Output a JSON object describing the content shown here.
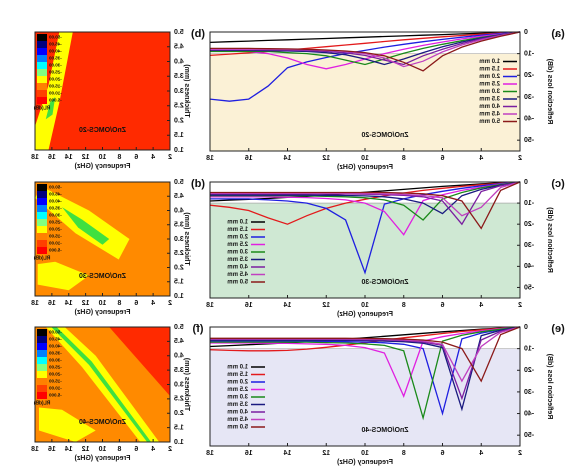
{
  "chart_data": [
    {
      "type": "line",
      "panel": "(a)",
      "annotation": "ZnO/OMCS-20",
      "x_label": "Frequency (GHz)",
      "y_label": "Reflection loss (dB)",
      "x": [
        2,
        3,
        4,
        5,
        6,
        7,
        8,
        9,
        10,
        11,
        12,
        13,
        14,
        15,
        16,
        17,
        18
      ],
      "xlim": [
        2,
        18
      ],
      "xticks": [
        2,
        4,
        6,
        8,
        10,
        12,
        14,
        16,
        18
      ],
      "ylim": [
        -55,
        0
      ],
      "yticks": [
        0,
        -10,
        -20,
        -30,
        -40,
        -50
      ],
      "shade": {
        "below": -10,
        "color": "#fbf1d6"
      },
      "legend": "left",
      "series": [
        {
          "name": "1.0 mm",
          "color": "#000000",
          "values": [
            0,
            -0.3,
            -0.6,
            -0.9,
            -1.2,
            -1.5,
            -1.8,
            -2.1,
            -2.4,
            -2.7,
            -3,
            -3.3,
            -3.6,
            -3.9,
            -4.2,
            -4.5,
            -4.8
          ]
        },
        {
          "name": "1.5 mm",
          "color": "#e31a1c",
          "values": [
            0,
            -0.5,
            -1,
            -1.6,
            -2.2,
            -2.9,
            -3.6,
            -4.4,
            -5.2,
            -6,
            -6.8,
            -7.6,
            -8.3,
            -9,
            -9.6,
            -10.2,
            -10.8
          ]
        },
        {
          "name": "2.0 mm",
          "color": "#1f1fe0",
          "values": [
            0,
            -0.7,
            -1.5,
            -2.4,
            -3.4,
            -4.5,
            -5.7,
            -7,
            -8.5,
            -10,
            -11.8,
            -13.8,
            -16.5,
            -25,
            -31,
            -32,
            -31
          ]
        },
        {
          "name": "2.5 mm",
          "color": "#e020e0",
          "values": [
            0,
            -1,
            -2,
            -3.2,
            -4.6,
            -6.2,
            -8,
            -10,
            -12.5,
            -15,
            -17,
            -15,
            -12,
            -10,
            -9,
            -8.5,
            -8
          ]
        },
        {
          "name": "3.0 mm",
          "color": "#1a8a1a",
          "values": [
            0,
            -1.2,
            -2.5,
            -4,
            -5.7,
            -7.6,
            -9.8,
            -12.5,
            -15,
            -13,
            -11,
            -10,
            -9.5,
            -9,
            -9,
            -9,
            -9
          ]
        },
        {
          "name": "3.5 mm",
          "color": "#1a1a80",
          "values": [
            0,
            -1.3,
            -2.8,
            -4.6,
            -6.8,
            -9.5,
            -12.5,
            -15,
            -12.5,
            -10.5,
            -9.5,
            -9,
            -8.8,
            -8.6,
            -8.5,
            -8.5,
            -8.5
          ]
        },
        {
          "name": "4.0 mm",
          "color": "#7a1fa0",
          "values": [
            0,
            -1.5,
            -3.2,
            -5.3,
            -8,
            -11,
            -15,
            -13,
            -10.8,
            -9.6,
            -9,
            -8.6,
            -8.4,
            -8.3,
            -8.2,
            -8.2,
            -8.2
          ]
        },
        {
          "name": "4.5 mm",
          "color": "#c040c0",
          "values": [
            0,
            -1.7,
            -3.6,
            -6,
            -9.2,
            -13.5,
            -16,
            -12,
            -10,
            -9,
            -8.5,
            -8.2,
            -8,
            -8,
            -8,
            -8,
            -8
          ]
        },
        {
          "name": "5.0 mm",
          "color": "#8b1a1a",
          "values": [
            0,
            -2,
            -4.2,
            -7,
            -11,
            -18,
            -14,
            -11,
            -9.5,
            -8.8,
            -8.3,
            -8,
            -7.8,
            -7.7,
            -7.6,
            -7.6,
            -7.6
          ]
        }
      ]
    },
    {
      "type": "contour",
      "panel": "(b)",
      "annotation": "ZnO/OMCS-20",
      "x_label": "Frequency (GHz)",
      "y_label": "Thickness (mm)",
      "xlim": [
        2,
        18
      ],
      "xticks": [
        2,
        4,
        6,
        8,
        10,
        12,
        14,
        16,
        18
      ],
      "ylim": [
        1,
        5
      ],
      "yticks": [
        {
          "value": 1,
          "label": "1.0"
        },
        1.5,
        {
          "value": 2,
          "label": "2.0"
        },
        2.5,
        {
          "value": 3,
          "label": "3.0"
        },
        3.5,
        {
          "value": 4,
          "label": "4.0"
        },
        4.5,
        {
          "value": 5,
          "label": "5.0"
        }
      ],
      "fill_color": "#ff2a00",
      "colorbar": {
        "label": "RL(dB)",
        "colors": [
          "#000000",
          "#00007f",
          "#0000ff",
          "#0080ff",
          "#00ffff",
          "#80ff80",
          "#ffff00",
          "#ff8000",
          "#ff4000",
          "#ff0000"
        ],
        "ticks": [
          {
            "value": -50,
            "label": "-50.00"
          },
          {
            "value": -45,
            "label": "-45.00"
          },
          {
            "value": -40,
            "label": "-40.00"
          },
          {
            "value": -35,
            "label": "-35.00"
          },
          {
            "value": -30,
            "label": "-30.00"
          },
          {
            "value": -25,
            "label": "-25.00"
          },
          {
            "value": -20,
            "label": "-20.00"
          },
          {
            "value": -15,
            "label": "-15.00"
          },
          {
            "value": -10,
            "label": "-10.00"
          },
          {
            "value": -5,
            "label": "-5.000"
          }
        ]
      }
    },
    {
      "type": "line",
      "panel": "(c)",
      "annotation": "ZnO/OMCS-30",
      "x_label": "Frequency (GHz)",
      "y_label": "Reflection loss (dB)",
      "x": [
        2,
        3,
        4,
        5,
        6,
        7,
        8,
        9,
        10,
        11,
        12,
        13,
        14,
        15,
        16,
        17,
        18
      ],
      "xlim": [
        2,
        18
      ],
      "xticks": [
        2,
        4,
        6,
        8,
        10,
        12,
        14,
        16,
        18
      ],
      "ylim": [
        -55,
        0
      ],
      "yticks": [
        0,
        -10,
        -20,
        -30,
        -40,
        -50
      ],
      "shade": {
        "below": -10,
        "color": "#cfe8d3"
      },
      "legend": "right",
      "series": [
        {
          "name": "1.0 mm",
          "color": "#000000",
          "values": [
            0,
            -0.4,
            -0.9,
            -1.5,
            -2.1,
            -2.8,
            -3.5,
            -4.2,
            -4.9,
            -5.6,
            -6.2,
            -6.8,
            -7.3,
            -7.8,
            -8.2,
            -8.6,
            -9
          ]
        },
        {
          "name": "1.5 mm",
          "color": "#e31a1c",
          "values": [
            0,
            -0.6,
            -1.3,
            -2.1,
            -3,
            -4,
            -5.2,
            -6.6,
            -8.2,
            -10,
            -12.5,
            -16,
            -20,
            -17,
            -13.5,
            -12,
            -11
          ]
        },
        {
          "name": "2.0 mm",
          "color": "#1f1fe0",
          "values": [
            0,
            -0.8,
            -1.8,
            -3,
            -4.4,
            -6,
            -8,
            -10.5,
            -43,
            -18,
            -12.5,
            -10,
            -9,
            -8.5,
            -8,
            -8,
            -8
          ]
        },
        {
          "name": "2.5 mm",
          "color": "#e020e0",
          "values": [
            0,
            -1,
            -2.4,
            -4,
            -6,
            -8.8,
            -25,
            -14,
            -10,
            -8.5,
            -7.8,
            -7.4,
            -7.2,
            -7,
            -7,
            -7,
            -7
          ]
        },
        {
          "name": "3.0 mm",
          "color": "#1a8a1a",
          "values": [
            0,
            -1.2,
            -2.8,
            -5,
            -8,
            -18,
            -11,
            -8.5,
            -7.5,
            -7,
            -6.8,
            -6.6,
            -6.5,
            -6.5,
            -6.5,
            -6.5,
            -6.5
          ]
        },
        {
          "name": "3.5 mm",
          "color": "#1a1a80",
          "values": [
            0,
            -1.5,
            -3.5,
            -6.5,
            -15,
            -10,
            -8,
            -7,
            -6.6,
            -6.4,
            -6.3,
            -6.2,
            -6.2,
            -6.2,
            -6.2,
            -6.2,
            -6.2
          ]
        },
        {
          "name": "4.0 mm",
          "color": "#7a1fa0",
          "values": [
            0,
            -1.8,
            -4.5,
            -20,
            -9,
            -7,
            -6.3,
            -6,
            -5.8,
            -5.7,
            -5.6,
            -5.6,
            -5.6,
            -5.6,
            -5.6,
            -5.6,
            -5.6
          ]
        },
        {
          "name": "4.5 mm",
          "color": "#c040c0",
          "values": [
            0,
            -2.6,
            -12,
            -16,
            -7.5,
            -6.4,
            -5.9,
            -5.6,
            -5.5,
            -5.4,
            -5.4,
            -5.4,
            -5.4,
            -5.4,
            -5.4,
            -5.4,
            -5.4
          ]
        },
        {
          "name": "5.0 mm",
          "color": "#8b1a1a",
          "values": [
            0,
            -4,
            -22,
            -9,
            -6.5,
            -5.6,
            -5.2,
            -5,
            -5,
            -5,
            -5,
            -5,
            -5,
            -5,
            -5,
            -5,
            -5
          ]
        }
      ]
    },
    {
      "type": "contour",
      "panel": "(d)",
      "annotation": "ZnO/OMCS-30",
      "x_label": "Frequency (GHz)",
      "y_label": "Thickness (mm)",
      "xlim": [
        2,
        18
      ],
      "xticks": [
        2,
        4,
        6,
        8,
        10,
        12,
        14,
        16,
        18
      ],
      "ylim": [
        1,
        5
      ],
      "yticks": [
        {
          "value": 1,
          "label": "1.0"
        },
        1.5,
        {
          "value": 2,
          "label": "2.0"
        },
        2.5,
        {
          "value": 3,
          "label": "3.0"
        },
        3.5,
        {
          "value": 4,
          "label": "4.0"
        },
        4.5,
        {
          "value": 5,
          "label": "5.0"
        }
      ],
      "fill_color": "#ff8a00",
      "colorbar": {
        "label": "RL(dB)",
        "colors": [
          "#000000",
          "#00007f",
          "#0000ff",
          "#0080ff",
          "#00ffff",
          "#80ff80",
          "#ffff00",
          "#ff8000",
          "#ff4000",
          "#ff0000"
        ],
        "ticks": [
          {
            "value": -50,
            "label": "-50.00"
          },
          {
            "value": -45,
            "label": "-45.00"
          },
          {
            "value": -40,
            "label": "-40.00"
          },
          {
            "value": -35,
            "label": "-35.00"
          },
          {
            "value": -30,
            "label": "-30.00"
          },
          {
            "value": -25,
            "label": "-25.00"
          },
          {
            "value": -20,
            "label": "-20.00"
          },
          {
            "value": -15,
            "label": "-15.00"
          },
          {
            "value": -10,
            "label": "-10.00"
          },
          {
            "value": -5,
            "label": "-5.000"
          }
        ]
      }
    },
    {
      "type": "line",
      "panel": "(e)",
      "annotation": "ZnO/OMCS-40",
      "x_label": "Frequency (GHz)",
      "y_label": "Reflection loss (dB)",
      "x": [
        2,
        3,
        4,
        5,
        6,
        7,
        8,
        9,
        10,
        11,
        12,
        13,
        14,
        15,
        16,
        17,
        18
      ],
      "xlim": [
        2,
        18
      ],
      "xticks": [
        2,
        4,
        6,
        8,
        10,
        12,
        14,
        16,
        18
      ],
      "ylim": [
        -55,
        0
      ],
      "yticks": [
        0,
        -10,
        -20,
        -30,
        -40,
        -50
      ],
      "shade": {
        "below": -10,
        "color": "#e6e6f5"
      },
      "legend": "right",
      "series": [
        {
          "name": "1.0 mm",
          "color": "#000000",
          "values": [
            0,
            -0.5,
            -1,
            -1.6,
            -2.2,
            -2.9,
            -3.6,
            -4.3,
            -5,
            -5.6,
            -6.2,
            -6.8,
            -7.3,
            -7.8,
            -8.2,
            -8.6,
            -9
          ]
        },
        {
          "name": "1.5 mm",
          "color": "#e31a1c",
          "values": [
            0,
            -0.6,
            -1.3,
            -2.1,
            -3,
            -4,
            -5,
            -6.1,
            -7.3,
            -8.4,
            -9.4,
            -10.2,
            -10.8,
            -11,
            -11,
            -10.8,
            -10.5
          ]
        },
        {
          "name": "2.0 mm",
          "color": "#1f1fe0",
          "values": [
            0,
            -1.2,
            -2.8,
            -5.5,
            -40,
            -10,
            -8,
            -7.3,
            -7,
            -6.8,
            -6.7,
            -6.6,
            -6.6,
            -6.6,
            -6.6,
            -6.6,
            -6.6
          ]
        },
        {
          "name": "2.5 mm",
          "color": "#e020e0",
          "values": [
            0,
            -0.8,
            -1.8,
            -3,
            -4.5,
            -6.5,
            -32,
            -12,
            -9.5,
            -8.5,
            -8,
            -7.8,
            -7.6,
            -7.5,
            -7.4,
            -7.4,
            -7.4
          ]
        },
        {
          "name": "3.0 mm",
          "color": "#1a8a1a",
          "values": [
            0,
            -1,
            -2.2,
            -3.8,
            -6.5,
            -42,
            -11,
            -8.5,
            -7.8,
            -7.4,
            -7.2,
            -7,
            -7,
            -7,
            -7,
            -7,
            -7
          ]
        },
        {
          "name": "3.5 mm",
          "color": "#1a1a80",
          "values": [
            0,
            -1.5,
            -4,
            -38,
            -9.5,
            -7.5,
            -6.8,
            -6.5,
            -6.3,
            -6.2,
            -6.2,
            -6.2,
            -6.2,
            -6.2,
            -6.2,
            -6.2,
            -6.2
          ]
        },
        {
          "name": "4.0 mm",
          "color": "#7a1fa0",
          "values": [
            0,
            -2,
            -6,
            -33,
            -8.5,
            -7,
            -6.3,
            -6,
            -5.9,
            -5.8,
            -5.8,
            -5.8,
            -5.8,
            -5.8,
            -5.8,
            -5.8,
            -5.8
          ]
        },
        {
          "name": "4.5 mm",
          "color": "#c040c0",
          "values": [
            0,
            -2.5,
            -9,
            -25,
            -8,
            -6.5,
            -6,
            -5.7,
            -5.6,
            -5.5,
            -5.5,
            -5.5,
            -5.5,
            -5.5,
            -5.5,
            -5.5,
            -5.5
          ]
        },
        {
          "name": "5.0 mm",
          "color": "#8b1a1a",
          "values": [
            0,
            -3.5,
            -25,
            -10,
            -7,
            -6,
            -5.6,
            -5.4,
            -5.3,
            -5.2,
            -5.2,
            -5.2,
            -5.2,
            -5.2,
            -5.2,
            -5.2,
            -5.2
          ]
        }
      ]
    },
    {
      "type": "contour",
      "panel": "(f)",
      "annotation": "ZnO/OMCS-40",
      "x_label": "Frequency (GHz)",
      "y_label": "Thickness (mm)",
      "xlim": [
        2,
        18
      ],
      "xticks": [
        2,
        4,
        6,
        8,
        10,
        12,
        14,
        16,
        18
      ],
      "ylim": [
        1,
        5
      ],
      "yticks": [
        {
          "value": 1,
          "label": "1.0"
        },
        1.5,
        {
          "value": 2,
          "label": "2.0"
        },
        2.5,
        {
          "value": 3,
          "label": "3.0"
        },
        3.5,
        {
          "value": 4,
          "label": "4.0"
        },
        4.5,
        {
          "value": 5,
          "label": "5.0"
        }
      ],
      "fill_color": "#ff8a00",
      "colorbar": {
        "label": "RL(dB)",
        "colors": [
          "#000000",
          "#00007f",
          "#0000ff",
          "#0080ff",
          "#00ffff",
          "#80ff80",
          "#ffff00",
          "#ff8000",
          "#ff4000",
          "#ff0000"
        ],
        "ticks": [
          {
            "value": -50,
            "label": "-50.00"
          },
          {
            "value": -45,
            "label": "-45.00"
          },
          {
            "value": -40,
            "label": "-40.00"
          },
          {
            "value": -35,
            "label": "-35.00"
          },
          {
            "value": -30,
            "label": "-30.00"
          },
          {
            "value": -25,
            "label": "-25.00"
          },
          {
            "value": -20,
            "label": "-20.00"
          },
          {
            "value": -15,
            "label": "-15.00"
          },
          {
            "value": -10,
            "label": "-10.00"
          },
          {
            "value": -5,
            "label": "-5.000"
          }
        ]
      }
    }
  ]
}
